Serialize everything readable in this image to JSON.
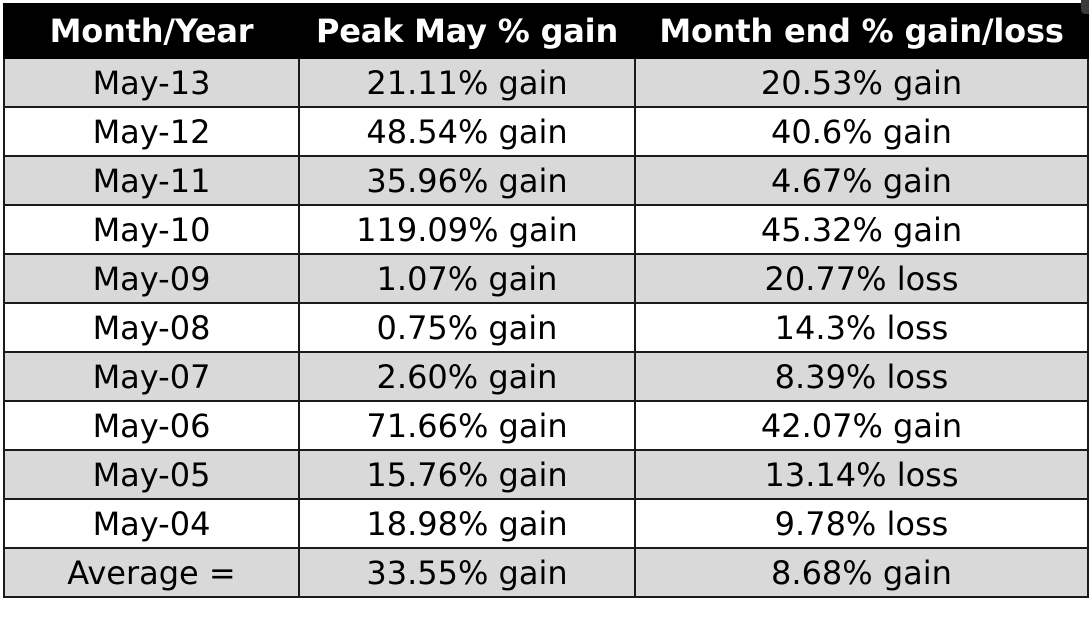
{
  "table": {
    "headers": [
      "Month/Year",
      "Peak May % gain",
      "Month end % gain/loss"
    ],
    "rows": [
      [
        "May-13",
        "21.11% gain",
        "20.53% gain"
      ],
      [
        "May-12",
        "48.54% gain",
        "40.6% gain"
      ],
      [
        "May-11",
        "35.96% gain",
        "4.67% gain"
      ],
      [
        "May-10",
        "119.09% gain",
        "45.32% gain"
      ],
      [
        "May-09",
        "1.07% gain",
        "20.77% loss"
      ],
      [
        "May-08",
        "0.75% gain",
        "14.3% loss"
      ],
      [
        "May-07",
        "2.60% gain",
        "8.39% loss"
      ],
      [
        "May-06",
        "71.66% gain",
        "42.07% gain"
      ],
      [
        "May-05",
        "15.76% gain",
        "13.14% loss"
      ],
      [
        "May-04",
        "18.98% gain",
        "9.78% loss"
      ],
      [
        "Average =",
        "33.55% gain",
        "8.68% gain"
      ]
    ]
  },
  "colors": {
    "header_bg": "#000000",
    "header_text": "#ffffff",
    "shaded_row": "#d9d9d9",
    "plain_row": "#ffffff"
  }
}
